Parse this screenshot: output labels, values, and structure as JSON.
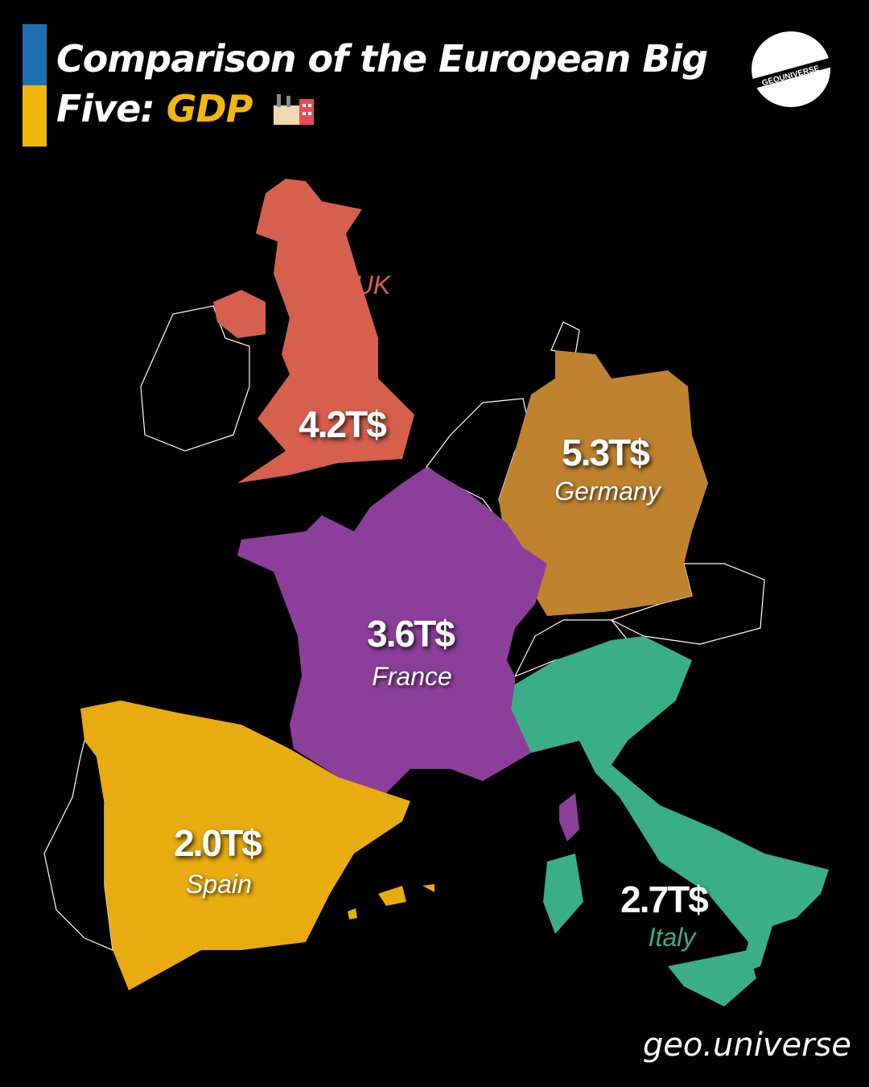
{
  "title": {
    "line1": "Comparison of the European Big",
    "line2_prefix": "Five: ",
    "line2_accent": "GDP",
    "emoji_icon": "factory-icon"
  },
  "logo": {
    "text": "GEOUNIVERSE"
  },
  "colors": {
    "flag_blue": "#1f6fb0",
    "flag_yellow": "#f2b70f",
    "uk": "#d65f4e",
    "germany": "#bf8330",
    "france": "#8b3f9b",
    "spain": "#e8ac10",
    "italy": "#3aae86"
  },
  "countries": [
    {
      "name": "UK",
      "gdp": "4.2T$"
    },
    {
      "name": "Germany",
      "gdp": "5.3T$"
    },
    {
      "name": "France",
      "gdp": "3.6T$"
    },
    {
      "name": "Spain",
      "gdp": "2.0T$"
    },
    {
      "name": "Italy",
      "gdp": "2.7T$"
    }
  ],
  "footer": "geo.universe"
}
